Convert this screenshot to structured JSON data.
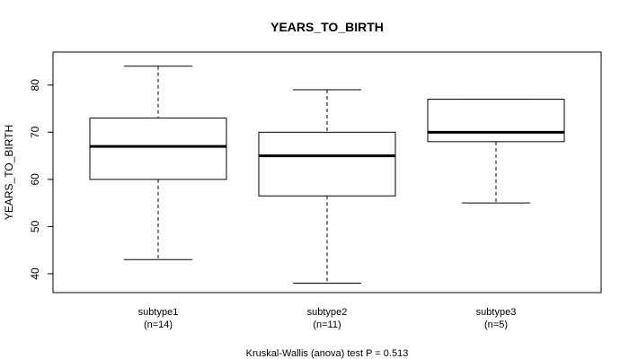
{
  "chart_data": {
    "type": "boxplot",
    "title": "YEARS_TO_BIRTH",
    "xlabel": "",
    "ylabel": "YEARS_TO_BIRTH",
    "ylim": [
      36,
      87
    ],
    "yticks": [
      40,
      50,
      60,
      70,
      80
    ],
    "grid": false,
    "legend": "none",
    "caption": "Kruskal-Wallis (anova) test P = 0.513",
    "categories": [
      {
        "name": "subtype1",
        "count": "(n=14)"
      },
      {
        "name": "subtype2",
        "count": "(n=11)"
      },
      {
        "name": "subtype3",
        "count": "(n=5)"
      }
    ],
    "boxes": [
      {
        "whisker_low": 43,
        "q1": 60,
        "median": 67,
        "q3": 73,
        "whisker_high": 84
      },
      {
        "whisker_low": 38,
        "q1": 56.5,
        "median": 65,
        "q3": 70,
        "whisker_high": 79
      },
      {
        "whisker_low": 55,
        "q1": 68,
        "median": 70,
        "q3": 77,
        "whisker_high": 77
      }
    ],
    "colors": {
      "box_fill": "#ffffff",
      "stroke": "#000000"
    }
  }
}
